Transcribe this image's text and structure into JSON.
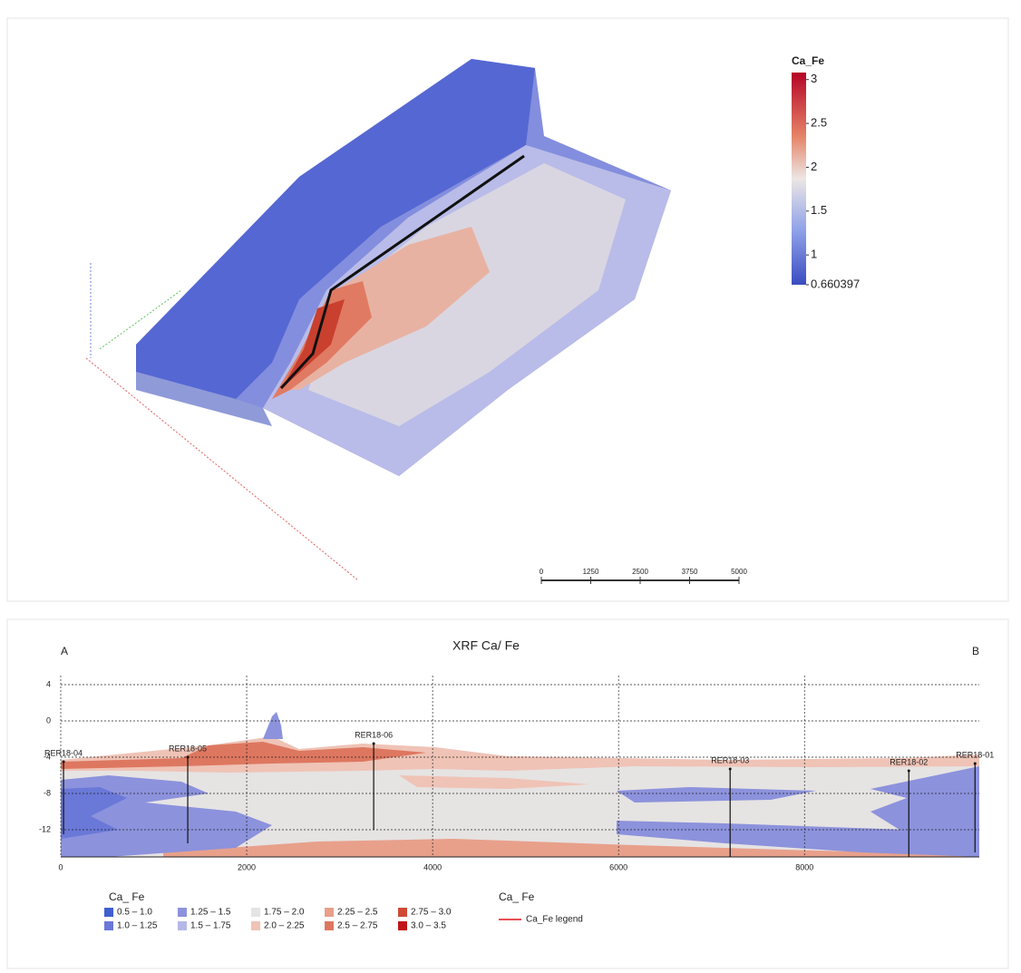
{
  "model_view": {
    "colorbar": {
      "title": "Ca_Fe",
      "lim": [
        0.660397,
        3.08
      ],
      "ticks": [
        3,
        2.5,
        2,
        1.5,
        1,
        0.660397
      ]
    },
    "scale_bar": {
      "lim": [
        0,
        5000
      ],
      "ticks": [
        0,
        1250,
        2500,
        3750,
        5000
      ]
    }
  },
  "chart_data": {
    "type": "section",
    "title": "XRF Ca/ Fe",
    "end_labels": [
      "A",
      "B"
    ],
    "xlim": [
      0,
      9880
    ],
    "xticks": [
      0,
      2000,
      4000,
      6000,
      8000
    ],
    "ylim": [
      -15,
      5
    ],
    "yticks": [
      4,
      0,
      -4,
      -8,
      -12
    ],
    "grid": true,
    "boreholes": [
      {
        "name": "RER18-04",
        "x": 30,
        "top": -4.5,
        "bottom": -12.5
      },
      {
        "name": "RER18-05",
        "x": 1366,
        "top": -4,
        "bottom": -13.5
      },
      {
        "name": "RER18-06",
        "x": 3366,
        "top": -2.5,
        "bottom": -12
      },
      {
        "name": "RER18-03",
        "x": 7200,
        "top": -5.3,
        "bottom": -15
      },
      {
        "name": "RER18-02",
        "x": 9122,
        "top": -5.5,
        "bottom": -15
      },
      {
        "name": "RER18-01",
        "x": 9834,
        "top": -4.7,
        "bottom": -14.5
      }
    ],
    "legend": {
      "title": "Ca_ Fe",
      "items": [
        {
          "label": "0.5 – 1.0",
          "color": "#3f5fcf"
        },
        {
          "label": "1.0 – 1.25",
          "color": "#6a78d8"
        },
        {
          "label": "1.25 – 1.5",
          "color": "#8c92dc"
        },
        {
          "label": "1.5 – 1.75",
          "color": "#b5b8e6"
        },
        {
          "label": "1.75 – 2.0",
          "color": "#e6e3e3"
        },
        {
          "label": "2.0 – 2.25",
          "color": "#efc3b6"
        },
        {
          "label": "2.25 – 2.5",
          "color": "#e8a08b"
        },
        {
          "label": "2.5 – 2.75",
          "color": "#de7760"
        },
        {
          "label": "2.75 – 3.0",
          "color": "#cf4a35"
        },
        {
          "label": "3.0 – 3.5",
          "color": "#c0141a"
        }
      ]
    },
    "trace_legend": {
      "title": "Ca_ Fe",
      "label": "Ca_Fe legend",
      "color": "#e0141a"
    }
  }
}
